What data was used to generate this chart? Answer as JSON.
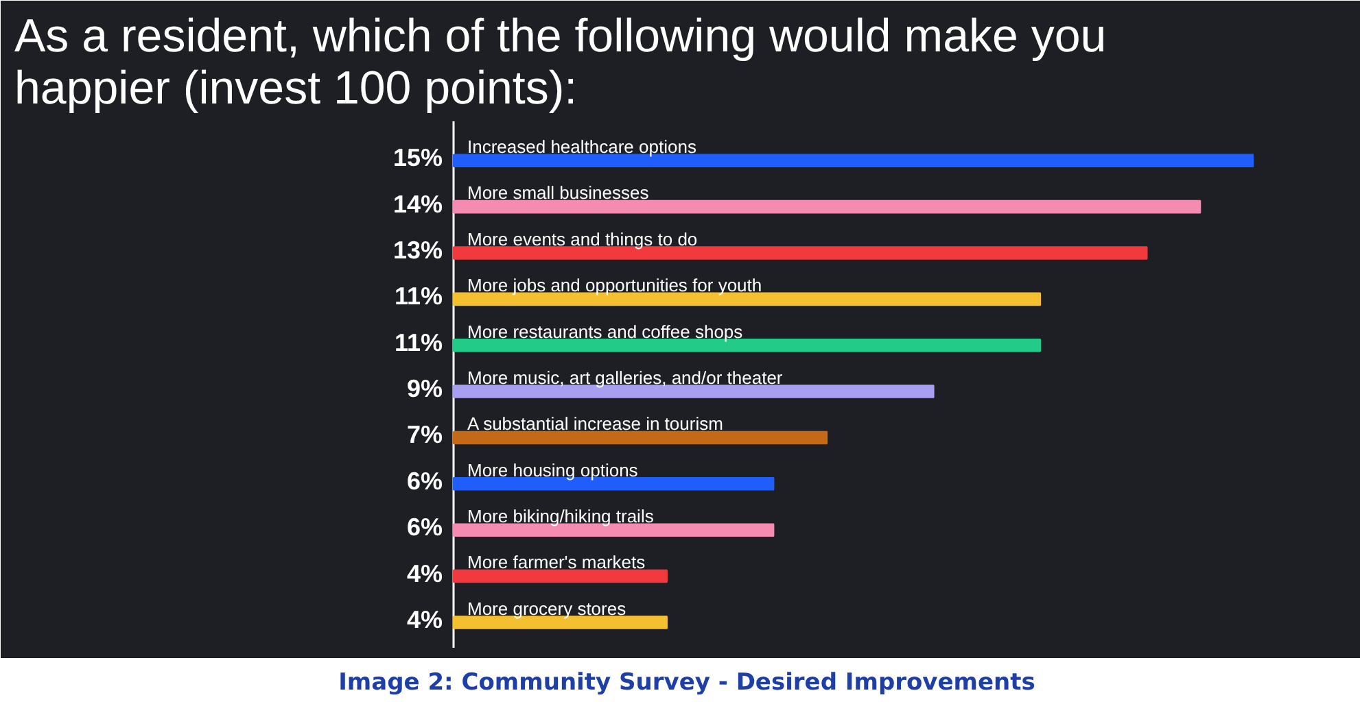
{
  "chart_data": {
    "type": "bar",
    "orientation": "horizontal",
    "title": "As a resident, which of the following would make you happier (invest 100 points):",
    "categories": [
      "Increased healthcare options",
      "More small businesses",
      "More events and things to do",
      "More jobs and opportunities for youth",
      "More restaurants and coffee shops",
      "More music, art galleries, and/or theater",
      "A substantial increase in tourism",
      "More housing options",
      "More biking/hiking trails",
      "More farmer's markets",
      "More grocery stores"
    ],
    "values": [
      15,
      14,
      13,
      11,
      11,
      9,
      7,
      6,
      6,
      4,
      4
    ],
    "value_labels": [
      "15%",
      "14%",
      "13%",
      "11%",
      "11%",
      "9%",
      "7%",
      "6%",
      "6%",
      "4%",
      "4%"
    ],
    "colors": [
      "#1f5efa",
      "#f58bb0",
      "#f23a3e",
      "#f5c030",
      "#22cc88",
      "#a89ff0",
      "#c46a16",
      "#1f5efa",
      "#f58bb0",
      "#f23a3e",
      "#f5c030"
    ],
    "annotations": [
      "Image 2: Community Survey - Desired Improvements"
    ],
    "grid": false
  }
}
